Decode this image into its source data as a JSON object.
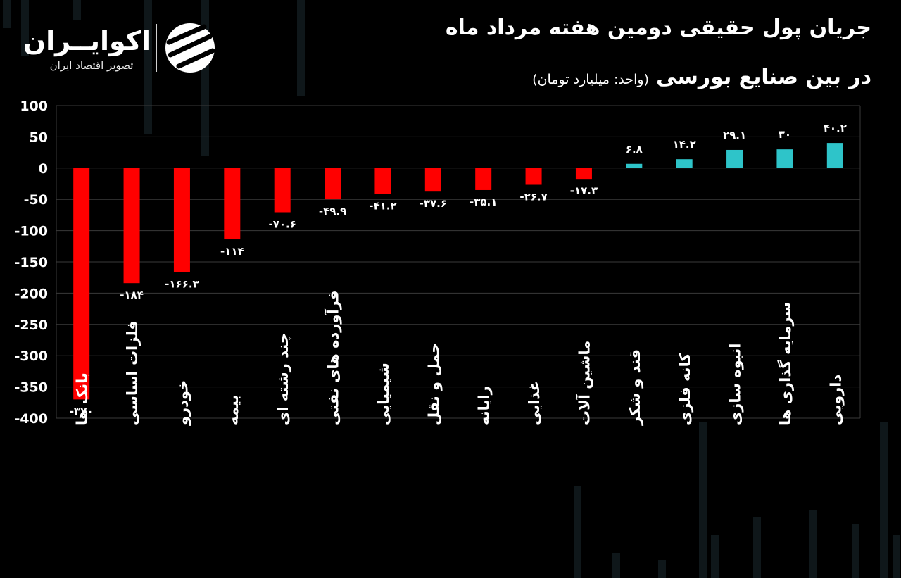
{
  "header": {
    "title_line1": "جریان پول حقیقی دومین هفته مرداد ماه",
    "title_line2": "در بین صنایع بورسی",
    "unit": "(واحد: میلیارد تومان)"
  },
  "brand": {
    "name": "اکوایــران",
    "tagline": "تصویر اقتصاد ایران"
  },
  "colors": {
    "negative": "#ff0000",
    "positive": "#2ec4c9",
    "background": "#000000",
    "grid": "#3a3a3a"
  },
  "chart_data": {
    "type": "bar",
    "categories": [
      "بانک ها",
      "فلزات اساسی",
      "خودرو",
      "بیمه",
      "چند رشته ای",
      "فرآورده های نفتی",
      "شیمیایی",
      "حمل و نقل",
      "رایانه",
      "غذایی",
      "ماشین آلات",
      "قند و شکر",
      "کانه فلزی",
      "انبوه سازی",
      "سرمایه گذاری ها",
      "دارویی"
    ],
    "values": [
      -370,
      -184,
      -166.3,
      -114,
      -70.6,
      -49.9,
      -41.2,
      -37.6,
      -35.1,
      -26.7,
      -17.3,
      6.8,
      14.2,
      29.1,
      30,
      40.2
    ],
    "value_labels": [
      "-۳۷۰",
      "-۱۸۴",
      "-۱۶۶.۳",
      "-۱۱۴",
      "-۷۰.۶",
      "-۴۹.۹",
      "-۴۱.۲",
      "-۳۷.۶",
      "-۳۵.۱",
      "-۲۶.۷",
      "-۱۷.۳",
      "۶.۸",
      "۱۴.۲",
      "۲۹.۱",
      "۳۰",
      "۴۰.۲"
    ],
    "yticks": [
      100,
      50,
      0,
      -50,
      -100,
      -150,
      -200,
      -250,
      -300,
      -350,
      -400
    ],
    "ytick_labels": [
      "100",
      "50",
      "0",
      "-50",
      "-100",
      "-150",
      "-200",
      "-250",
      "-300",
      "-350",
      "-400"
    ],
    "ylim": [
      -400,
      100
    ],
    "grid": true,
    "title": "",
    "xlabel": "",
    "ylabel": ""
  }
}
